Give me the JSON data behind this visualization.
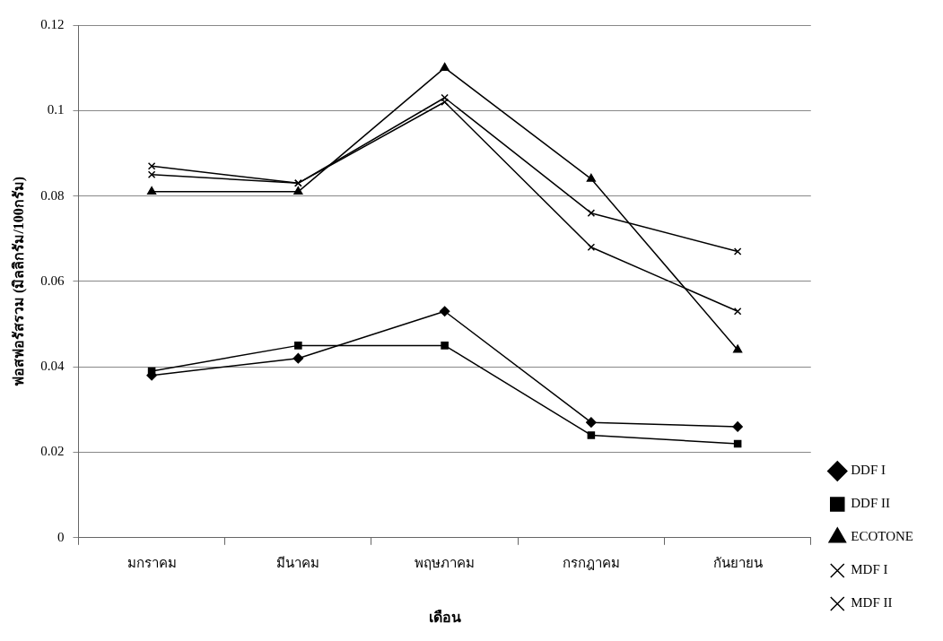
{
  "chart_data": {
    "type": "line",
    "xlabel": "เดือน",
    "ylabel": "ฟอสฟอรัสรวม (มิลลิกรัม/100กรัม)",
    "categories": [
      "มกราคม",
      "มีนาคม",
      "พฤษภาคม",
      "กรกฎาคม",
      "กันยายน"
    ],
    "ylim": [
      0,
      0.12
    ],
    "yticks": [
      0,
      0.02,
      0.04,
      0.06,
      0.08,
      0.1,
      0.12
    ],
    "grid": "y",
    "legend": "bottom right",
    "line_style": "solid",
    "series": [
      {
        "name": "DDF I",
        "color": "#000000",
        "marker": "diamond",
        "values": [
          0.038,
          0.042,
          0.053,
          0.027,
          0.026
        ]
      },
      {
        "name": "DDF II",
        "color": "#000000",
        "marker": "square",
        "values": [
          0.039,
          0.045,
          0.045,
          0.024,
          0.022
        ]
      },
      {
        "name": "ECOTONE",
        "color": "#000000",
        "marker": "triangle",
        "values": [
          0.081,
          0.081,
          0.11,
          0.084,
          0.044
        ]
      },
      {
        "name": "MDF I",
        "color": "#000000",
        "marker": "cross",
        "values": [
          0.085,
          0.083,
          0.102,
          0.068,
          0.053
        ]
      },
      {
        "name": "MDF II",
        "color": "#000000",
        "marker": "cross",
        "values": [
          0.087,
          0.083,
          0.103,
          0.076,
          0.067
        ]
      }
    ]
  }
}
